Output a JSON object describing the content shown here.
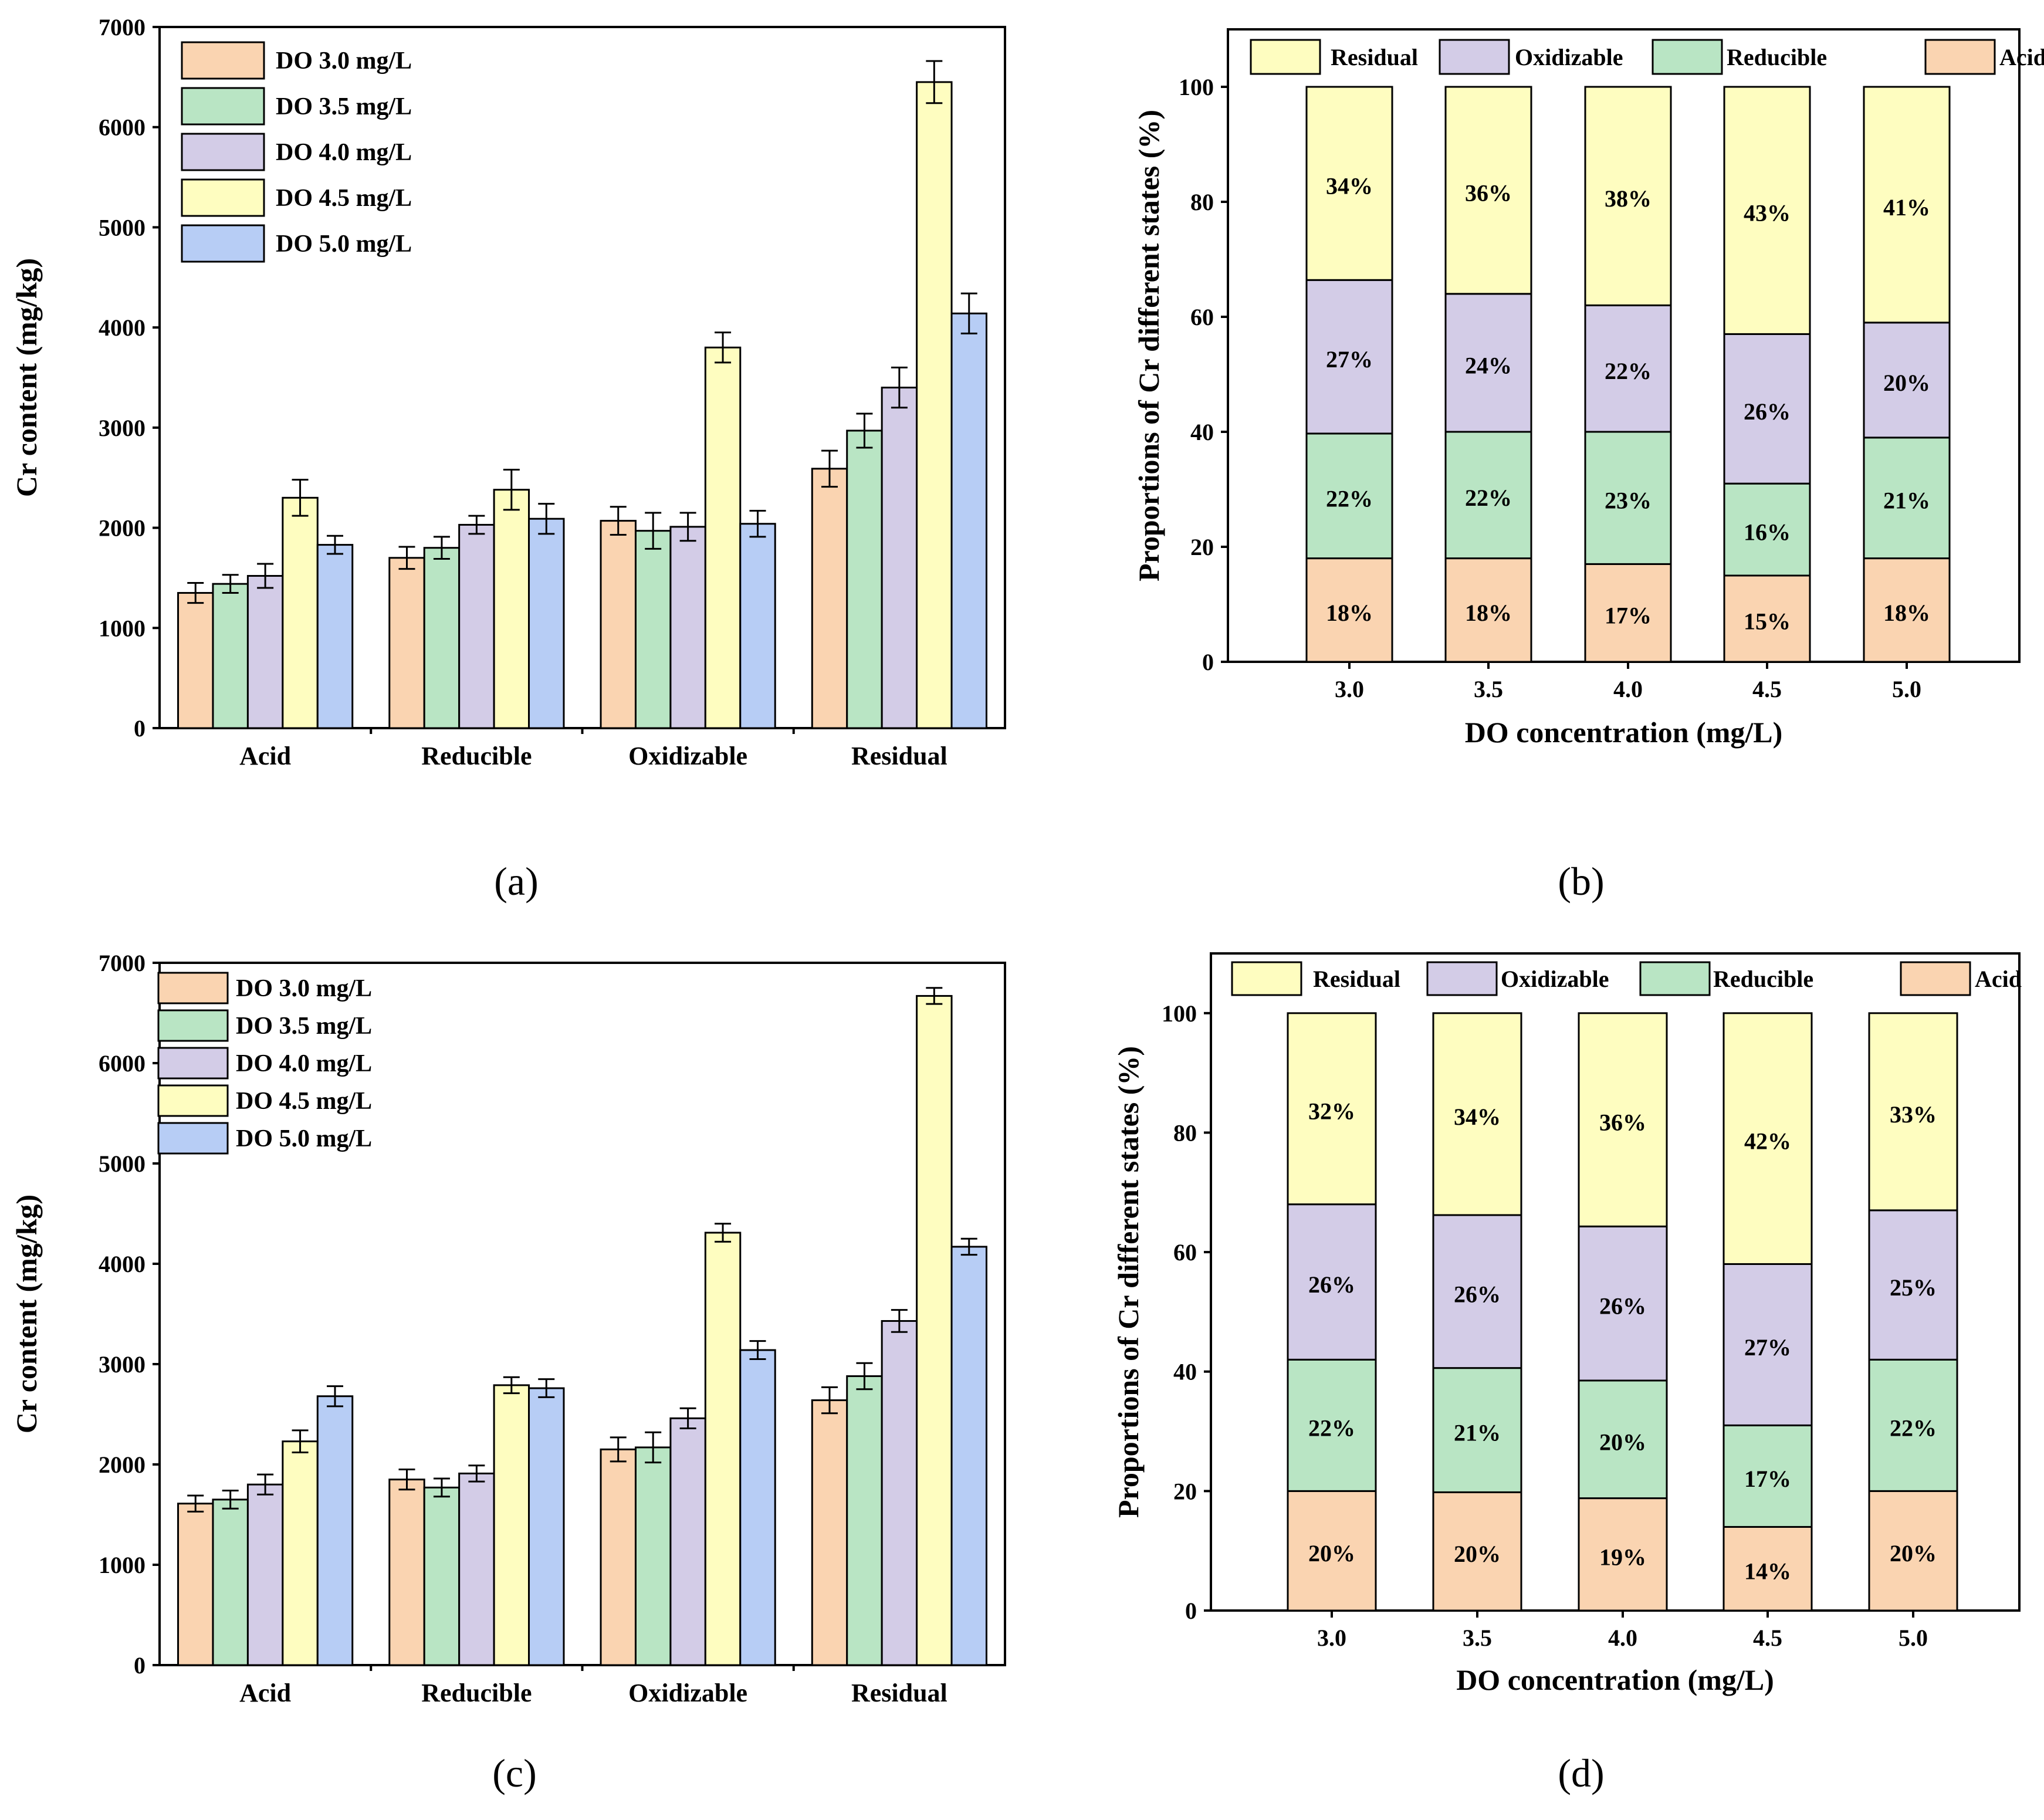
{
  "chart_data": [
    {
      "panel": "(a)",
      "type": "bar",
      "ylabel": "Cr content (mg/kg)",
      "ylim": [
        0,
        7000
      ],
      "yticks": [
        "0",
        "1000",
        "2000",
        "3000",
        "4000",
        "5000",
        "6000",
        "7000"
      ],
      "categories": [
        "Acid",
        "Reducible",
        "Oxidizable",
        "Residual"
      ],
      "legend_position": "top-left",
      "series": [
        {
          "name": "DO 3.0 mg/L",
          "color": "#FAD4B1",
          "values": [
            1350,
            1700,
            2070,
            2590
          ],
          "errors": [
            100,
            110,
            140,
            180
          ]
        },
        {
          "name": "DO 3.5 mg/L",
          "color": "#B9E5C4",
          "values": [
            1440,
            1800,
            1970,
            2970
          ],
          "errors": [
            90,
            110,
            180,
            170
          ]
        },
        {
          "name": "DO 4.0 mg/L",
          "color": "#D3CCE7",
          "values": [
            1520,
            2030,
            2010,
            3400
          ],
          "errors": [
            120,
            90,
            140,
            200
          ]
        },
        {
          "name": "DO 4.5 mg/L",
          "color": "#FEFDC0",
          "values": [
            2300,
            2380,
            3800,
            6450
          ],
          "errors": [
            180,
            200,
            150,
            210
          ]
        },
        {
          "name": "DO 5.0 mg/L",
          "color": "#B7CDF5",
          "values": [
            1830,
            2090,
            2040,
            4140
          ],
          "errors": [
            90,
            150,
            130,
            200
          ]
        }
      ]
    },
    {
      "panel": "(b)",
      "type": "bar",
      "stacked": true,
      "xlabel": "DO concentration (mg/L)",
      "ylabel": "Proportions of Cr different states (%)",
      "ylim": [
        0,
        110
      ],
      "yticks": [
        "0",
        "20",
        "40",
        "60",
        "80",
        "100"
      ],
      "categories": [
        "3.0",
        "3.5",
        "4.0",
        "4.5",
        "5.0"
      ],
      "legend_position": "top",
      "legend_order": [
        "Residual",
        "Oxidizable",
        "Reducible",
        "Acid"
      ],
      "series": [
        {
          "name": "Acid",
          "color": "#FAD4B1",
          "values": [
            18,
            18,
            17,
            15,
            18
          ],
          "labels": [
            "18%",
            "18%",
            "17%",
            "15%",
            "18%"
          ]
        },
        {
          "name": "Reducible",
          "color": "#B9E5C4",
          "values": [
            21.7,
            22,
            23,
            16,
            21
          ],
          "labels": [
            "22%",
            "22%",
            "23%",
            "16%",
            "21%"
          ]
        },
        {
          "name": "Oxidizable",
          "color": "#D3CCE7",
          "values": [
            26.7,
            24,
            22,
            26,
            20
          ],
          "labels": [
            "27%",
            "24%",
            "22%",
            "26%",
            "20%"
          ]
        },
        {
          "name": "Residual",
          "color": "#FEFDC0",
          "values": [
            33.6,
            36,
            38,
            43,
            41
          ],
          "labels": [
            "34%",
            "36%",
            "38%",
            "43%",
            "41%"
          ]
        }
      ]
    },
    {
      "panel": "(c)",
      "type": "bar",
      "ylabel": "Cr content (mg/kg)",
      "ylim": [
        0,
        7000
      ],
      "yticks": [
        "0",
        "1000",
        "2000",
        "3000",
        "4000",
        "5000",
        "6000",
        "7000"
      ],
      "categories": [
        "Acid",
        "Reducible",
        "Oxidizable",
        "Residual"
      ],
      "legend_position": "top-left",
      "series": [
        {
          "name": "DO 3.0 mg/L",
          "color": "#FAD4B1",
          "values": [
            1610,
            1850,
            2150,
            2640
          ],
          "errors": [
            80,
            100,
            120,
            130
          ]
        },
        {
          "name": "DO 3.5 mg/L",
          "color": "#B9E5C4",
          "values": [
            1650,
            1770,
            2170,
            2880
          ],
          "errors": [
            90,
            90,
            150,
            130
          ]
        },
        {
          "name": "DO 4.0 mg/L",
          "color": "#D3CCE7",
          "values": [
            1800,
            1910,
            2460,
            3430
          ],
          "errors": [
            100,
            80,
            100,
            110
          ]
        },
        {
          "name": "DO 4.5 mg/L",
          "color": "#FEFDC0",
          "values": [
            2230,
            2790,
            4310,
            6670
          ],
          "errors": [
            110,
            80,
            90,
            80
          ]
        },
        {
          "name": "DO 5.0 mg/L",
          "color": "#B7CDF5",
          "values": [
            2680,
            2760,
            3140,
            4170
          ],
          "errors": [
            100,
            90,
            90,
            80
          ]
        }
      ]
    },
    {
      "panel": "(d)",
      "type": "bar",
      "stacked": true,
      "xlabel": "DO concentration (mg/L)",
      "ylabel": "Proportions of Cr different states (%)",
      "ylim": [
        0,
        110
      ],
      "yticks": [
        "0",
        "20",
        "40",
        "60",
        "80",
        "100"
      ],
      "categories": [
        "3.0",
        "3.5",
        "4.0",
        "4.5",
        "5.0"
      ],
      "legend_position": "top",
      "legend_order": [
        "Residual",
        "Oxidizable",
        "Reducible",
        "Acid"
      ],
      "series": [
        {
          "name": "Acid",
          "color": "#FAD4B1",
          "values": [
            20,
            19.8,
            18.8,
            14,
            20
          ],
          "labels": [
            "20%",
            "20%",
            "19%",
            "14%",
            "20%"
          ]
        },
        {
          "name": "Reducible",
          "color": "#B9E5C4",
          "values": [
            22,
            20.8,
            19.7,
            17,
            22
          ],
          "labels": [
            "22%",
            "21%",
            "20%",
            "17%",
            "22%"
          ]
        },
        {
          "name": "Oxidizable",
          "color": "#D3CCE7",
          "values": [
            26,
            25.6,
            25.8,
            27,
            25
          ],
          "labels": [
            "26%",
            "26%",
            "26%",
            "27%",
            "25%"
          ]
        },
        {
          "name": "Residual",
          "color": "#FEFDC0",
          "values": [
            32,
            33.8,
            35.7,
            42,
            33
          ],
          "labels": [
            "32%",
            "34%",
            "36%",
            "42%",
            "33%"
          ]
        }
      ]
    }
  ]
}
